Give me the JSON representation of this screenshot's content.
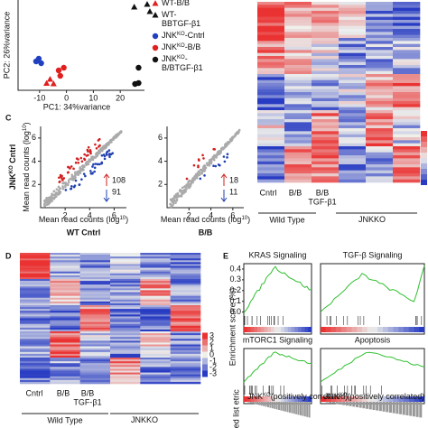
{
  "pca": {
    "x_label": "PC1: 34%variance",
    "y_label": "PC2: 26%variance",
    "xlim": [
      -18,
      29
    ],
    "ylim": [
      -20,
      20
    ],
    "xticks": [
      -10,
      0,
      10,
      20
    ],
    "groups": [
      {
        "lines": [
          [
            "WT-B/B"
          ]
        ],
        "color": "#e02020",
        "marker": "triangle",
        "points": [
          [
            -7.4,
            -17
          ],
          [
            -6.1,
            -15.2
          ],
          [
            -4.8,
            -17.2
          ]
        ]
      },
      {
        "lines": [
          [
            "WT-"
          ],
          [
            "BBTGF-β1"
          ]
        ],
        "color": "#111111",
        "marker": "triangle",
        "points": [
          [
            25.2,
            16.8
          ],
          [
            30,
            18
          ],
          [
            31,
            14.8
          ]
        ]
      },
      {
        "lines": [
          [
            "JNK",
            "KO",
            "-Cntrl"
          ]
        ],
        "color": "#2040c0",
        "marker": "circle",
        "points": [
          [
            -10.3,
            -6
          ],
          [
            -9.4,
            -8
          ],
          [
            -11.3,
            -7.2
          ]
        ]
      },
      {
        "lines": [
          [
            "JNK",
            "KO",
            "-B/B"
          ]
        ],
        "color": "#e02020",
        "marker": "circle",
        "points": [
          [
            -2.9,
            -11.2
          ],
          [
            -1,
            -10
          ],
          [
            -2.3,
            -13.6
          ]
        ]
      },
      {
        "lines": [
          [
            "JNK",
            "KO",
            "-"
          ],
          [
            "B/BTGF-β1"
          ]
        ],
        "color": "#111111",
        "marker": "circle",
        "points": [
          [
            26.8,
            -10
          ],
          [
            26.8,
            -16.8
          ],
          [
            25.5,
            -17.2
          ]
        ]
      }
    ]
  },
  "panel_c": {
    "letter": "C",
    "y_label": [
      "JNK",
      "KO",
      " Cntrl"
    ],
    "axis_label": [
      "Mean read counts (log",
      "10",
      ")"
    ],
    "xlim": [
      0,
      7
    ],
    "ylim": [
      0,
      7
    ],
    "ticks": [
      2,
      4,
      6
    ],
    "plots": [
      {
        "x_label": "WT Cntrl",
        "up": 108,
        "down": 91
      },
      {
        "x_label": "B/B",
        "up": 18,
        "down": 11
      }
    ]
  },
  "heatmap_top": {
    "columns": [
      "Cntrl",
      "B/B",
      [
        "B/B",
        "TGF-β1"
      ]
    ],
    "groups": [
      "Wild Type",
      [
        "JNK",
        "KO"
      ]
    ]
  },
  "panel_d": {
    "letter": "D",
    "columns": [
      "Cntrl",
      "B/B",
      [
        "B/B",
        "TGF-β1"
      ]
    ],
    "groups": [
      "Wild Type",
      [
        "JNK",
        "KO"
      ]
    ],
    "scale": [
      3,
      2,
      1,
      0,
      -1,
      -2,
      -3
    ]
  },
  "panel_e": {
    "letter": "E",
    "y_label": "Enrichment score (%)",
    "titles": [
      "KRAS Signaling",
      "TGF-β Signaling",
      "mTORC1 Signaling",
      "Apoptosis"
    ],
    "yticks": [
      {
        "value": 0.4,
        "label": "0.4"
      },
      {
        "value": 0.3,
        "label": "0.3"
      },
      {
        "value": 0.2,
        "label": "0.2"
      },
      {
        "value": 0.1,
        "label": "0.1"
      },
      {
        "value": 0,
        "label": "0.0"
      }
    ],
    "ylim": [
      -0.02,
      0.45
    ],
    "rank_label": "ked list\netric",
    "corr": [
      "JNK",
      "KO",
      "(positively correlated)"
    ]
  }
}
